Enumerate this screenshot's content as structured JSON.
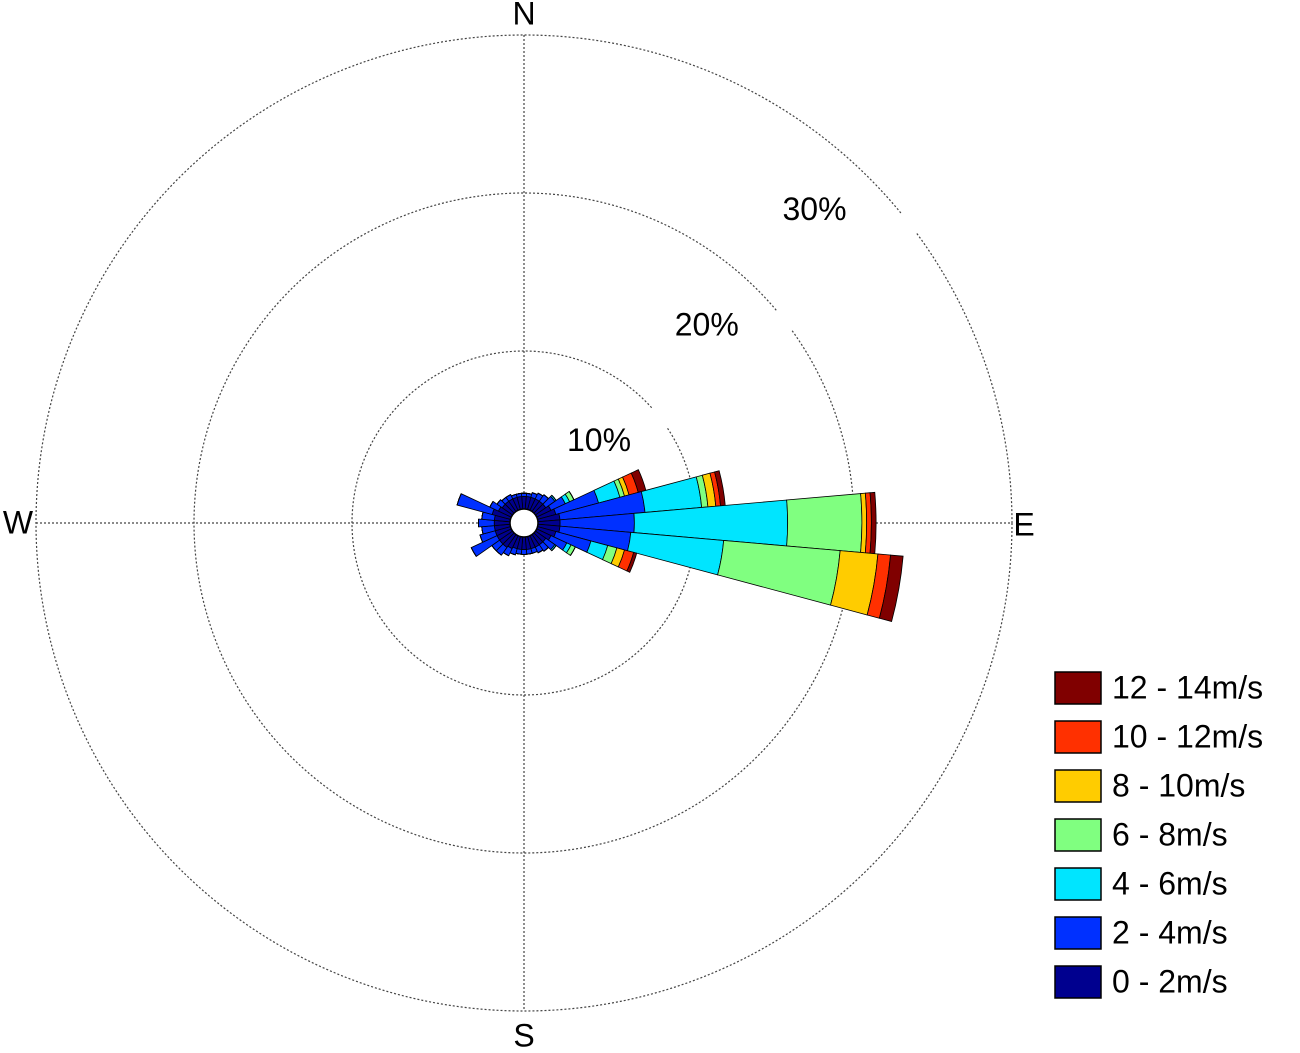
{
  "chart_data": {
    "type": "windrose",
    "directions": [
      0,
      10,
      20,
      30,
      40,
      50,
      60,
      70,
      80,
      90,
      100,
      110,
      120,
      130,
      140,
      150,
      160,
      170,
      180,
      190,
      200,
      210,
      220,
      230,
      240,
      250,
      260,
      270,
      280,
      290,
      300,
      310,
      320,
      330,
      340,
      350
    ],
    "compass": [
      "N",
      "E",
      "S",
      "W"
    ],
    "ylim": [
      0,
      30
    ],
    "yticks": [
      {
        "value": 10,
        "label": "10%"
      },
      {
        "value": 20,
        "label": "20%"
      },
      {
        "value": 30,
        "label": "30%"
      }
    ],
    "grid": true,
    "legend": "lower right",
    "series": [
      {
        "name": "0 - 2m/s",
        "color": "#00008f",
        "values": [
          0.8,
          0.8,
          0.8,
          0.8,
          0.8,
          0.8,
          1.0,
          1.2,
          1.4,
          1.4,
          1.4,
          1.2,
          1.0,
          0.8,
          0.8,
          0.8,
          0.8,
          0.8,
          0.8,
          0.8,
          0.8,
          0.9,
          1.0,
          1.0,
          1.0,
          1.0,
          1.0,
          1.0,
          1.0,
          1.2,
          0.9,
          0.8,
          0.8,
          0.8,
          0.8,
          0.8
        ]
      },
      {
        "name": "2 - 4m/s",
        "color": "#0030ff",
        "values": [
          0.2,
          0.2,
          0.3,
          0.4,
          0.5,
          0.7,
          1.0,
          2.8,
          5.4,
          4.7,
          4.5,
          2.3,
          1.1,
          0.7,
          0.5,
          0.4,
          0.3,
          0.3,
          0.3,
          0.3,
          0.4,
          0.5,
          0.6,
          0.6,
          1.8,
          1.0,
          0.8,
          1.0,
          0.8,
          2.3,
          0.6,
          0.4,
          0.3,
          0.3,
          0.2,
          0.2
        ]
      },
      {
        "name": "4 - 6m/s",
        "color": "#00e5ff",
        "values": [
          0,
          0,
          0,
          0,
          0,
          0.1,
          0.3,
          1.4,
          3.6,
          9.7,
          5.9,
          1.1,
          0.3,
          0.1,
          0,
          0,
          0,
          0,
          0,
          0,
          0,
          0,
          0,
          0,
          0,
          0,
          0,
          0,
          0,
          0,
          0,
          0,
          0,
          0,
          0,
          0
        ]
      },
      {
        "name": "6 - 8m/s",
        "color": "#80ff80",
        "values": [
          0,
          0,
          0,
          0,
          0,
          0,
          0.3,
          0.3,
          0.4,
          4.7,
          7.4,
          0.6,
          0.3,
          0,
          0,
          0,
          0,
          0,
          0,
          0,
          0,
          0,
          0,
          0,
          0,
          0,
          0,
          0,
          0,
          0,
          0,
          0,
          0,
          0,
          0,
          0
        ]
      },
      {
        "name": "8 - 10m/s",
        "color": "#ffcc00",
        "values": [
          0,
          0,
          0,
          0,
          0,
          0,
          0,
          0.3,
          0.5,
          0.3,
          2.4,
          0.5,
          0,
          0,
          0,
          0,
          0,
          0,
          0,
          0,
          0,
          0,
          0,
          0,
          0,
          0,
          0,
          0,
          0,
          0,
          0,
          0,
          0,
          0,
          0,
          0
        ]
      },
      {
        "name": "10 - 12m/s",
        "color": "#ff3000",
        "values": [
          0,
          0,
          0,
          0,
          0,
          0,
          0,
          0.6,
          0.3,
          0.3,
          0.8,
          0.6,
          0,
          0,
          0,
          0,
          0,
          0,
          0,
          0,
          0,
          0,
          0,
          0,
          0,
          0,
          0,
          0,
          0,
          0,
          0,
          0,
          0,
          0,
          0,
          0
        ]
      },
      {
        "name": "12 - 14m/s",
        "color": "#800000",
        "values": [
          0,
          0,
          0,
          0,
          0,
          0,
          0,
          0.5,
          0.3,
          0.3,
          0.8,
          0.2,
          0,
          0,
          0,
          0,
          0,
          0,
          0,
          0,
          0,
          0,
          0,
          0,
          0,
          0,
          0,
          0,
          0,
          0,
          0,
          0,
          0,
          0,
          0,
          0
        ]
      }
    ]
  }
}
